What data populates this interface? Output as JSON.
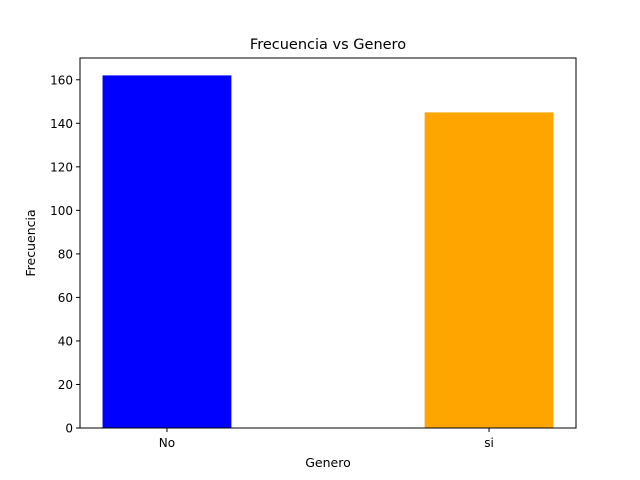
{
  "chart_data": {
    "type": "bar",
    "title": "Frecuencia vs Genero",
    "xlabel": "Genero",
    "ylabel": "Frecuencia",
    "categories": [
      "No",
      "si"
    ],
    "values": [
      162,
      145
    ],
    "colors": [
      "#0000ff",
      "#ffa500"
    ],
    "ylim": [
      0,
      170
    ],
    "yticks": [
      0,
      20,
      40,
      60,
      80,
      100,
      120,
      140,
      160
    ],
    "ytick_labels": [
      "0",
      "20",
      "40",
      "60",
      "80",
      "100",
      "120",
      "140",
      "160"
    ],
    "grid": false,
    "legend": false
  }
}
